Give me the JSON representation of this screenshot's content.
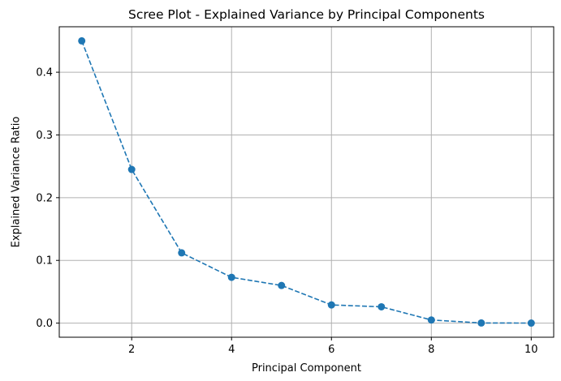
{
  "chart_data": {
    "type": "line",
    "title": "Scree Plot - Explained Variance by Principal Components",
    "xlabel": "Principal Component",
    "ylabel": "Explained Variance Ratio",
    "x": [
      1,
      2,
      3,
      4,
      5,
      6,
      7,
      8,
      9,
      10
    ],
    "series": [
      {
        "values": [
          0.45,
          0.245,
          0.112,
          0.073,
          0.06,
          0.029,
          0.026,
          0.005,
          0.0002,
          0.0001
        ],
        "color": "#1f77b4",
        "line_style": "dashed",
        "marker": "circle"
      }
    ],
    "xlim": [
      0.55,
      10.45
    ],
    "ylim": [
      -0.0225,
      0.4725
    ],
    "xticks": [
      2,
      4,
      6,
      8,
      10
    ],
    "xtick_labels": [
      "2",
      "4",
      "6",
      "8",
      "10"
    ],
    "yticks": [
      0.0,
      0.1,
      0.2,
      0.3,
      0.4
    ],
    "ytick_labels": [
      "0.0",
      "0.1",
      "0.2",
      "0.3",
      "0.4"
    ],
    "grid": true,
    "grid_color": "#b0b0b0"
  }
}
